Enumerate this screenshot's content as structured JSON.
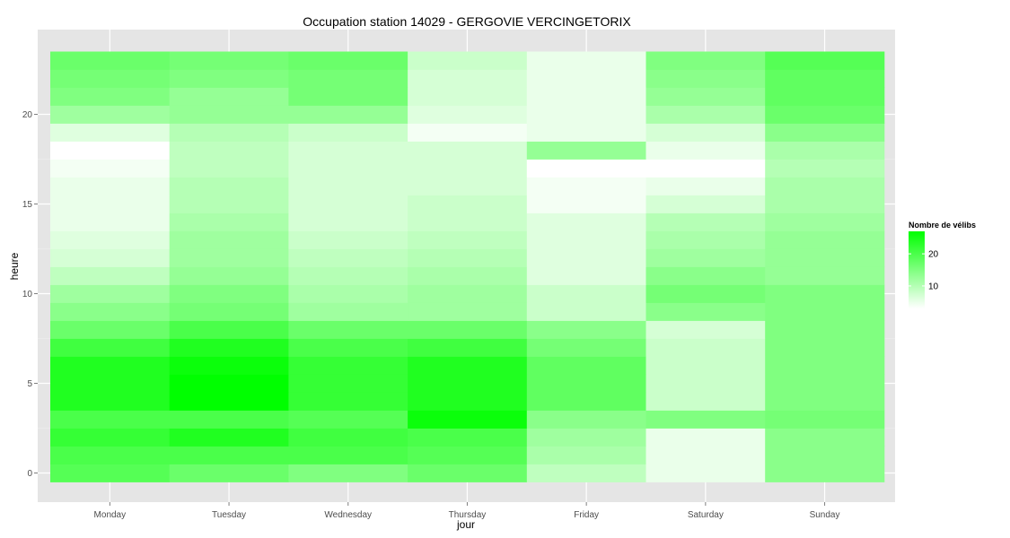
{
  "chart_data": {
    "type": "heatmap",
    "title": "Occupation station 14029 - GERGOVIE VERCINGETORIX",
    "xlabel": "jour",
    "ylabel": "heure",
    "x_categories": [
      "Monday",
      "Tuesday",
      "Wednesday",
      "Thursday",
      "Friday",
      "Saturday",
      "Sunday"
    ],
    "y_hours": [
      0,
      1,
      2,
      3,
      4,
      5,
      6,
      7,
      8,
      9,
      10,
      11,
      12,
      13,
      14,
      15,
      16,
      17,
      18,
      19,
      20,
      21,
      22,
      23
    ],
    "y_ticks": [
      0,
      5,
      10,
      15,
      20
    ],
    "y_tick_labels": [
      "0",
      "5",
      "10",
      "15",
      "20"
    ],
    "ylim": [
      -0.5,
      23.5
    ],
    "values": [
      [
        19,
        17,
        15,
        17,
        9,
        5,
        14
      ],
      [
        20,
        20,
        20,
        19,
        11,
        5,
        14
      ],
      [
        22,
        24,
        21,
        20,
        12,
        5,
        14
      ],
      [
        20,
        20,
        19,
        26,
        14,
        15,
        16
      ],
      [
        24,
        27,
        22,
        24,
        18,
        8,
        15
      ],
      [
        24,
        27,
        22,
        24,
        18,
        8,
        15
      ],
      [
        24,
        26,
        22,
        24,
        18,
        8,
        15
      ],
      [
        21,
        24,
        20,
        21,
        16,
        8,
        15
      ],
      [
        17,
        20,
        17,
        17,
        14,
        7,
        15
      ],
      [
        14,
        16,
        12,
        12,
        8,
        14,
        15
      ],
      [
        12,
        15,
        11,
        12,
        8,
        16,
        15
      ],
      [
        9,
        13,
        10,
        11,
        6,
        14,
        13
      ],
      [
        7,
        12,
        9,
        10,
        6,
        12,
        13
      ],
      [
        6,
        12,
        8,
        9,
        6,
        11,
        13
      ],
      [
        5,
        11,
        7,
        8,
        6,
        10,
        12
      ],
      [
        5,
        10,
        7,
        8,
        4,
        7,
        11
      ],
      [
        5,
        10,
        7,
        7,
        4,
        5,
        11
      ],
      [
        4,
        9,
        7,
        7,
        3,
        3,
        10
      ],
      [
        3,
        9,
        7,
        7,
        13,
        5,
        11
      ],
      [
        6,
        10,
        8,
        4,
        5,
        7,
        14
      ],
      [
        12,
        13,
        13,
        6,
        5,
        11,
        17
      ],
      [
        15,
        13,
        16,
        7,
        5,
        13,
        18
      ],
      [
        16,
        15,
        16,
        7,
        5,
        14,
        18
      ],
      [
        17,
        16,
        17,
        8,
        5,
        15,
        19
      ]
    ],
    "value_range": [
      3,
      27
    ],
    "legend": {
      "title": "Nombre de vélibs",
      "ticks": [
        10,
        20
      ],
      "tick_labels": [
        "10",
        "20"
      ],
      "placement": "right"
    },
    "colors": {
      "low": "#ffffff",
      "high": "#00ff00",
      "panel_background": "#e5e5e5",
      "grid_major": "#ffffff",
      "grid_minor": "#f2f2f2"
    },
    "grid": true
  }
}
